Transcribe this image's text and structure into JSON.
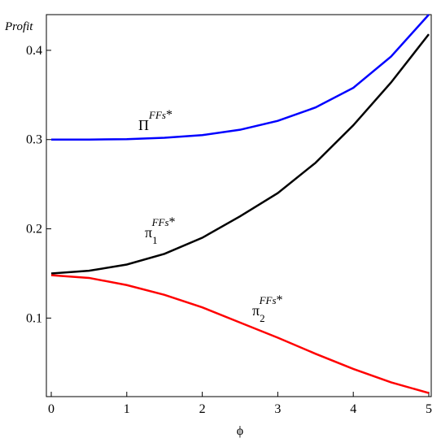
{
  "chart_data": {
    "type": "line",
    "y_label": "Profit",
    "x_label": "ϕ",
    "x": [
      0,
      0.5,
      1,
      1.5,
      2,
      2.5,
      3,
      3.5,
      4,
      4.5,
      5
    ],
    "series": [
      {
        "symbol": "Π",
        "superscript": "FFs",
        "mark": "*",
        "color": "#0000ff",
        "values": [
          0.3,
          0.3,
          0.3005,
          0.302,
          0.305,
          0.311,
          0.321,
          0.336,
          0.358,
          0.393,
          0.44
        ]
      },
      {
        "symbol": "π",
        "subscript": "1",
        "superscript": "FFs",
        "mark": "*",
        "color": "#000000",
        "values": [
          0.15,
          0.153,
          0.16,
          0.172,
          0.19,
          0.214,
          0.24,
          0.274,
          0.316,
          0.364,
          0.418
        ]
      },
      {
        "symbol": "π",
        "subscript": "2",
        "superscript": "FFs",
        "mark": "*",
        "color": "#ff0000",
        "values": [
          0.148,
          0.145,
          0.137,
          0.126,
          0.112,
          0.095,
          0.078,
          0.06,
          0.043,
          0.028,
          0.016
        ]
      }
    ],
    "xlim": [
      0,
      5
    ],
    "ylim": [
      0.012,
      0.44
    ],
    "xticks": [
      0,
      1,
      2,
      3,
      4,
      5
    ],
    "yticks": [
      0.1,
      0.2,
      0.3,
      0.4
    ]
  }
}
